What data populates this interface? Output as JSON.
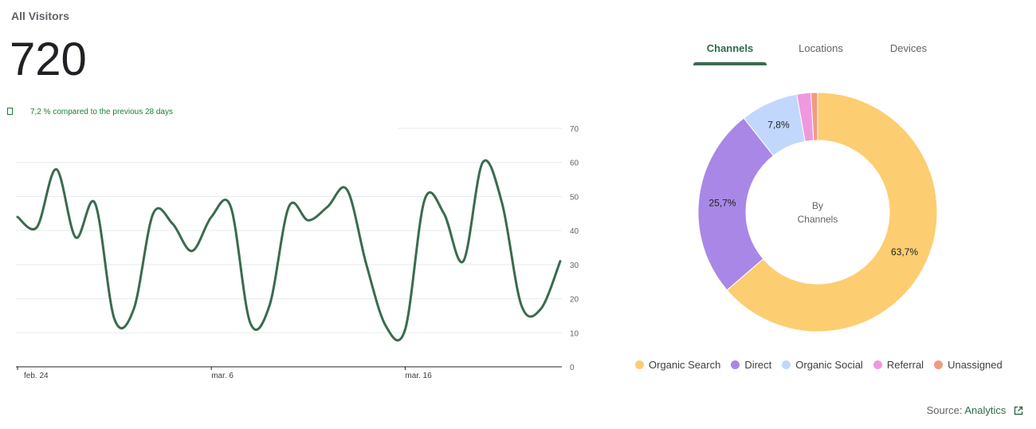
{
  "header": {
    "title": "All Visitors",
    "total": "720"
  },
  "comparison": {
    "text": "7,2 % compared to the previous 28 days",
    "color": "#188038"
  },
  "tabs": [
    {
      "label": "Channels",
      "active": true
    },
    {
      "label": "Locations",
      "active": false
    },
    {
      "label": "Devices",
      "active": false
    }
  ],
  "donut_center": {
    "line1": "By",
    "line2": "Channels"
  },
  "source": {
    "label": "Source:",
    "link": "Analytics"
  },
  "colors": {
    "line": "#3a6b4f",
    "accent": "#2f6b49"
  },
  "chart_data": [
    {
      "type": "line",
      "series": [
        {
          "values": [
            44,
            41,
            58,
            38,
            48,
            14,
            17,
            45,
            42,
            34,
            44,
            47,
            13,
            18,
            47,
            43,
            47,
            52,
            30,
            12,
            11,
            49,
            45,
            31,
            60,
            48,
            18,
            17,
            31
          ]
        }
      ],
      "x_tick_labels": [
        "feb. 24",
        "mar. 6",
        "mar. 16"
      ],
      "x_tick_index": [
        0,
        10,
        20
      ],
      "y_ticks": [
        0,
        10,
        20,
        30,
        40,
        50,
        60,
        70
      ],
      "ylim": [
        0,
        70
      ],
      "grid": true
    },
    {
      "type": "pie",
      "categories": [
        "Organic Search",
        "Direct",
        "Organic Social",
        "Referral",
        "Unassigned"
      ],
      "values": [
        63.7,
        25.7,
        7.8,
        1.9,
        0.9
      ],
      "labels": [
        "63,7%",
        "25,7%",
        "7,8%",
        "",
        ""
      ],
      "colors": [
        "#fdcd72",
        "#a987e6",
        "#c2d7fc",
        "#ef98df",
        "#f29a84"
      ],
      "legend": "bottom"
    }
  ]
}
